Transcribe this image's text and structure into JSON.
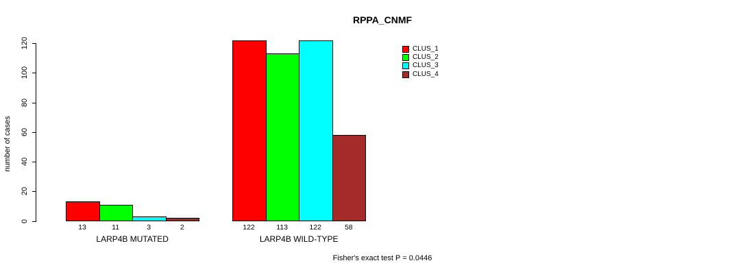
{
  "title": "RPPA_CNMF",
  "chart_data": {
    "type": "bar",
    "title": "RPPA_CNMF",
    "xlabel": "",
    "ylabel": "number of cases",
    "ylim": [
      0,
      120
    ],
    "yticks": [
      0,
      20,
      40,
      60,
      80,
      100,
      120
    ],
    "grid": false,
    "legend_position": "top-right",
    "categories": [
      "LARP4B MUTATED",
      "LARP4B WILD-TYPE"
    ],
    "series": [
      {
        "name": "CLUS_1",
        "color": "#ff0000",
        "values": [
          13,
          122
        ]
      },
      {
        "name": "CLUS_2",
        "color": "#00ff00",
        "values": [
          11,
          113
        ]
      },
      {
        "name": "CLUS_3",
        "color": "#00ffff",
        "values": [
          3,
          122
        ]
      },
      {
        "name": "CLUS_4",
        "color": "#a52a2a",
        "values": [
          2,
          58
        ]
      }
    ],
    "bar_value_labels": [
      [
        "13",
        "11",
        "3",
        "2"
      ],
      [
        "122",
        "113",
        "122",
        "58"
      ]
    ],
    "annotation": "Fisher's exact test P = 0.0446"
  }
}
